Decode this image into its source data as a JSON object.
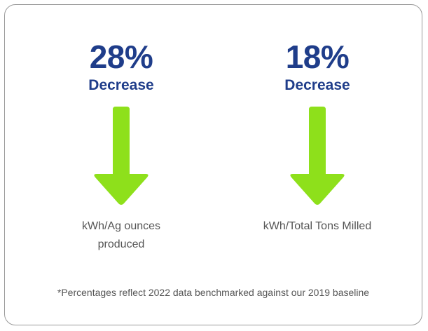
{
  "colors": {
    "heading": "#1f3d8a",
    "arrow": "#8ee01b",
    "text": "#555555",
    "border": "#9a9a9a"
  },
  "stats": [
    {
      "percent": "28%",
      "change": "Decrease",
      "icon": "arrow-down-icon",
      "metric": "kWh/Ag ounces produced"
    },
    {
      "percent": "18%",
      "change": "Decrease",
      "icon": "arrow-down-icon",
      "metric": "kWh/Total Tons Milled"
    }
  ],
  "footnote": "*Percentages reflect 2022 data benchmarked against our 2019 baseline"
}
